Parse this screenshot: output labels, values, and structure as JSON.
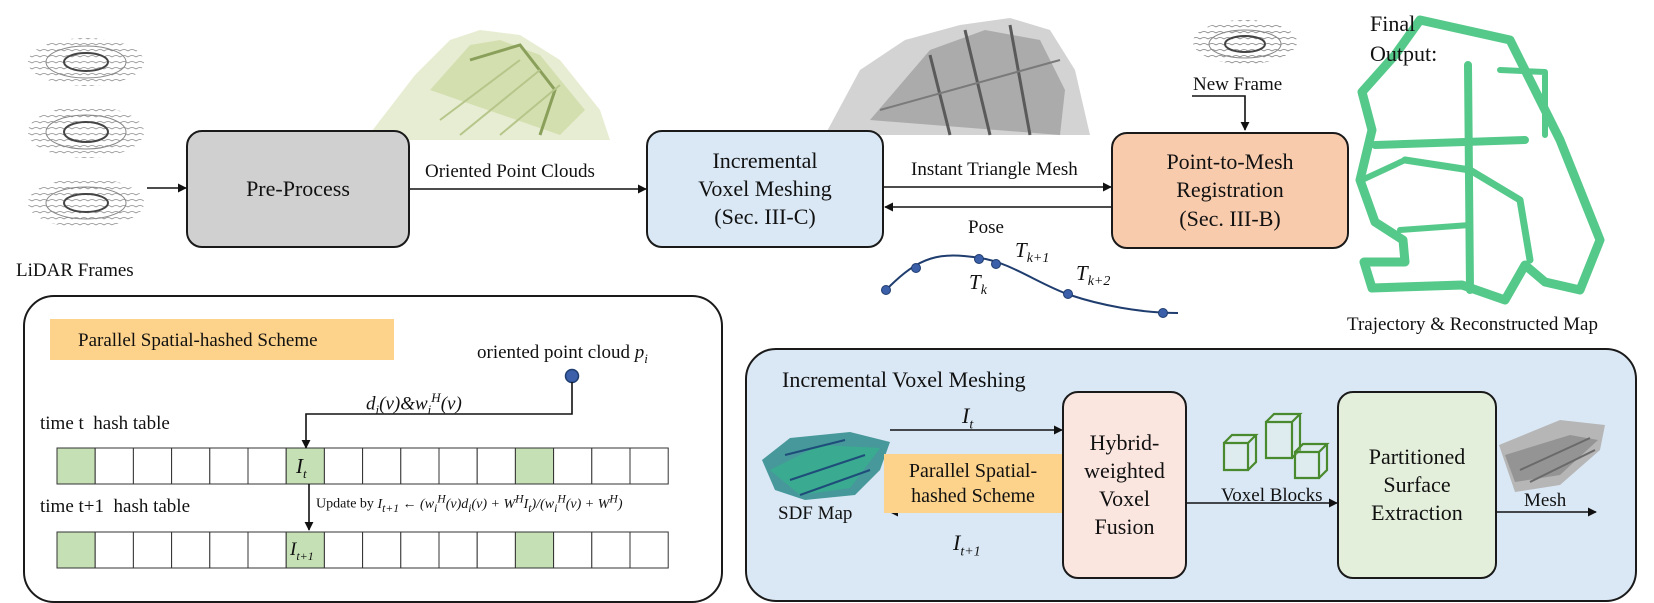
{
  "pipeline": {
    "lidar_label": "LiDAR Frames",
    "preprocess_label": "Pre-Process",
    "oriented_label": "Oriented Point Clouds",
    "ivm_lines": [
      "Incremental",
      "Voxel Meshing",
      "(Sec. III-C)"
    ],
    "instant_label": "Instant Triangle Mesh",
    "pose_label": "Pose",
    "p2m_lines": [
      "Point-to-Mesh",
      "Registration",
      "(Sec. III-B)"
    ],
    "new_frame_label": "New Frame",
    "final_lines": [
      "Final",
      "Output:"
    ],
    "traj_label": "Trajectory & Reconstructed Map",
    "trajectory_labels": [
      "T_k",
      "T_{k+1}",
      "T_{k+2}"
    ]
  },
  "scheme": {
    "title": "Parallel Spatial-hashed Scheme",
    "point_label": "oriented point cloud p_i",
    "row1_label": "time t  hash table",
    "row2_label": "time t+1  hash table",
    "update_eq": "d_i(v)&w_i^H(v)",
    "update_rule": "Update by I_{t+1} ← (w_i^H(v)d_i(v) + W^H I_t)/(w_i^H(v) + W^H)",
    "cell_top": "I_t",
    "cell_bottom": "I_{t+1}"
  },
  "ivm_panel": {
    "title": "Incremental Voxel Meshing",
    "sdf_label": "SDF Map",
    "it_label": "I_t",
    "it1_label": "I_{t+1}",
    "scheme_lines": [
      "Parallel Spatial-",
      "hashed Scheme"
    ],
    "fusion_lines": [
      "Hybrid-",
      "weighted",
      "Voxel",
      "Fusion"
    ],
    "voxel_blocks_label": "Voxel Blocks",
    "extraction_lines": [
      "Partitioned",
      "Surface",
      "Extraction"
    ],
    "mesh_label": "Mesh"
  },
  "colors": {
    "preprocess": "#d1d0d0",
    "ivm": "#dae8f5",
    "p2m": "#f8cbad",
    "panel": "#dae8f5",
    "scheme_box": "#fdd28a",
    "fusion": "#fae5df",
    "extraction": "#e3efda",
    "hash_green": "#c5e0b4",
    "map_green": "#55c98a",
    "voxel_green": "#4a8a2e",
    "trajectory": "#1f3d6e"
  }
}
